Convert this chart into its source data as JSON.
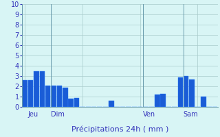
{
  "title": "",
  "xlabel": "Précipitations 24h ( mm )",
  "background_color": "#d8f5f5",
  "bar_color": "#1a5cd6",
  "bar_edge_color": "#2d7fff",
  "ylim": [
    0,
    10
  ],
  "yticks": [
    0,
    1,
    2,
    3,
    4,
    5,
    6,
    7,
    8,
    9,
    10
  ],
  "grid_color": "#aacccc",
  "bar_values": [
    2.6,
    2.6,
    3.45,
    3.45,
    2.1,
    2.1,
    2.1,
    1.9,
    0.8,
    0.9,
    0.0,
    0.0,
    0.0,
    0.0,
    0.0,
    0.6,
    0.0,
    0.0,
    0.0,
    0.0,
    0.0,
    0.0,
    0.0,
    1.2,
    1.3,
    0.0,
    0.0,
    2.9,
    3.0,
    2.7,
    0.0,
    1.0,
    0.0,
    0.0
  ],
  "day_labels": [
    "Jeu",
    "Dim",
    "Ven",
    "Sam"
  ],
  "day_positions": [
    0.5,
    4.5,
    20.5,
    27.5
  ],
  "vline_positions": [
    4.5,
    20.5,
    27.5
  ],
  "n_bars": 34,
  "xlabel_fontsize": 8,
  "tick_fontsize": 7,
  "day_fontsize": 7,
  "label_color": "#3333bb"
}
